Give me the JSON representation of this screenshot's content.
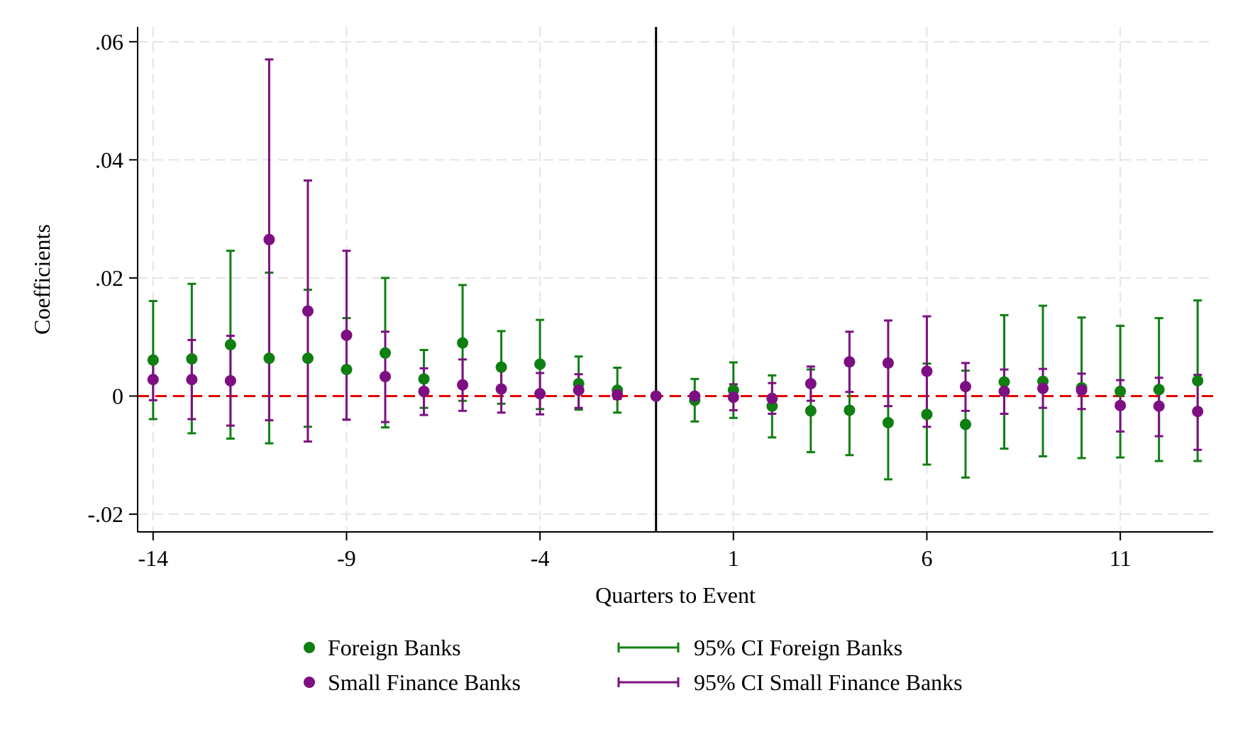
{
  "chart_data": {
    "type": "scatter",
    "xlabel": "Quarters to Event",
    "ylabel": "Coefficients",
    "xlim": [
      -14.4,
      13.4
    ],
    "ylim": [
      -0.023,
      0.0625
    ],
    "x_ticks": [
      -14,
      -9,
      -4,
      1,
      6,
      11
    ],
    "x_tick_labels": [
      "-14",
      "-9",
      "-4",
      "1",
      "6",
      "11"
    ],
    "y_ticks": [
      -0.02,
      0,
      0.02,
      0.04,
      0.06
    ],
    "y_tick_labels": [
      "-.02",
      "0",
      ".02",
      ".04",
      ".06"
    ],
    "grid": true,
    "zero_line": {
      "value": 0,
      "style": "dashed",
      "color": "#e00000"
    },
    "event_line": {
      "x": -1,
      "color": "#000000"
    },
    "x": [
      -14,
      -13,
      -12,
      -11,
      -10,
      -9,
      -8,
      -7,
      -6,
      -5,
      -4,
      -3,
      -2,
      -1,
      0,
      1,
      2,
      3,
      4,
      5,
      6,
      7,
      8,
      9,
      10,
      11,
      12,
      13
    ],
    "series": [
      {
        "name": "Foreign Banks",
        "ci_name": "95% CI Foreign Banks",
        "color": "#0f7f12",
        "values": [
          0.0061,
          0.0063,
          0.0087,
          0.0064,
          0.0064,
          0.0045,
          0.0073,
          0.0029,
          0.009,
          0.0049,
          0.0054,
          0.0021,
          0.001,
          0.0,
          -0.0007,
          0.001,
          -0.0017,
          -0.0025,
          -0.0024,
          -0.0045,
          -0.0031,
          -0.0048,
          0.0024,
          0.0025,
          0.0014,
          0.0008,
          0.0011,
          0.0026
        ],
        "ci_low": [
          -0.0039,
          -0.0063,
          -0.0072,
          -0.008,
          -0.0052,
          -0.004,
          -0.0053,
          -0.002,
          -0.0008,
          -0.0013,
          -0.0022,
          -0.0023,
          -0.0028,
          0.0,
          -0.0043,
          -0.0037,
          -0.007,
          -0.0095,
          -0.01,
          -0.0141,
          -0.0116,
          -0.0138,
          -0.0089,
          -0.0102,
          -0.0105,
          -0.0104,
          -0.011,
          -0.011
        ],
        "ci_high": [
          0.0161,
          0.019,
          0.0246,
          0.0209,
          0.018,
          0.0132,
          0.02,
          0.0078,
          0.0188,
          0.011,
          0.0129,
          0.0067,
          0.0048,
          0.0,
          0.0029,
          0.0057,
          0.0035,
          0.0045,
          0.0052,
          0.0051,
          0.0055,
          0.0043,
          0.0137,
          0.0153,
          0.0133,
          0.0119,
          0.0132,
          0.0162
        ]
      },
      {
        "name": "Small Finance Banks",
        "ci_name": "95% CI Small Finance Banks",
        "color": "#7d0f82",
        "values": [
          0.0028,
          0.0028,
          0.0026,
          0.0265,
          0.0144,
          0.0103,
          0.0033,
          0.0008,
          0.0019,
          0.0012,
          0.0004,
          0.001,
          0.0002,
          0.0,
          0.0,
          -0.0002,
          -0.0004,
          0.0021,
          0.0058,
          0.0056,
          0.0042,
          0.0016,
          0.0008,
          0.0013,
          0.001,
          -0.0016,
          -0.0017,
          -0.0026
        ],
        "ci_low": [
          -0.0007,
          -0.0039,
          -0.005,
          -0.0041,
          -0.0077,
          -0.004,
          -0.0044,
          -0.0032,
          -0.0025,
          -0.0028,
          -0.0031,
          -0.002,
          -0.0005,
          0.0,
          -0.0003,
          -0.0024,
          -0.003,
          -0.0008,
          0.0007,
          -0.0017,
          -0.0052,
          -0.0025,
          -0.003,
          -0.002,
          -0.0022,
          -0.006,
          -0.0068,
          -0.0091
        ],
        "ci_high": [
          0.0062,
          0.0095,
          0.0102,
          0.057,
          0.0365,
          0.0246,
          0.0109,
          0.0047,
          0.0062,
          0.0052,
          0.0039,
          0.0037,
          0.0011,
          0.0,
          0.0003,
          0.002,
          0.0022,
          0.005,
          0.0109,
          0.0128,
          0.0135,
          0.0056,
          0.0045,
          0.0046,
          0.0038,
          0.0027,
          0.0031,
          0.0036
        ]
      }
    ],
    "legend": {
      "placement": "bottom",
      "entries": [
        {
          "label": "Foreign Banks",
          "kind": "marker",
          "series": 0
        },
        {
          "label": "95% CI Foreign Banks",
          "kind": "ci",
          "series": 0
        },
        {
          "label": "Small Finance Banks",
          "kind": "marker",
          "series": 1
        },
        {
          "label": "95% CI Small Finance Banks",
          "kind": "ci",
          "series": 1
        }
      ]
    }
  }
}
